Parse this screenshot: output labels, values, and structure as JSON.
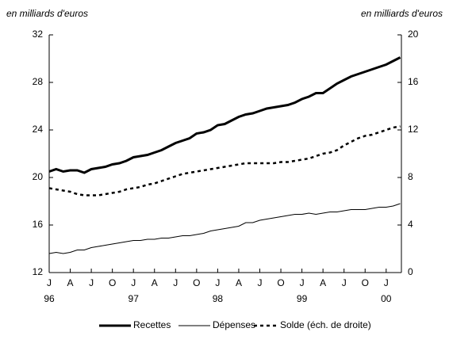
{
  "chart_data": {
    "type": "line",
    "y_label": "en milliards d'euros",
    "y2_label": "en milliards d'euros",
    "categories": [
      "J",
      null,
      null,
      "A",
      null,
      null,
      "J",
      null,
      null,
      "O",
      null,
      null,
      "J",
      null,
      null,
      "A",
      null,
      null,
      "J",
      null,
      null,
      "O",
      null,
      null,
      "J",
      null,
      null,
      "A",
      null,
      null,
      "J",
      null,
      null,
      "O",
      null,
      null,
      "J",
      null,
      null,
      "A",
      null,
      null,
      "J",
      null,
      null,
      "O",
      null,
      null,
      "J",
      null,
      null
    ],
    "year_labels": [
      "96",
      null,
      null,
      null,
      null,
      null,
      null,
      null,
      null,
      null,
      null,
      null,
      "97",
      null,
      null,
      null,
      null,
      null,
      null,
      null,
      null,
      null,
      null,
      null,
      "98",
      null,
      null,
      null,
      null,
      null,
      null,
      null,
      null,
      null,
      null,
      null,
      "99",
      null,
      null,
      null,
      null,
      null,
      null,
      null,
      null,
      null,
      null,
      null,
      "00",
      null,
      null
    ],
    "series": [
      {
        "name": "Recettes",
        "color": "#000000",
        "style": "bold",
        "values": [
          20.5,
          20.7,
          20.5,
          20.6,
          20.6,
          20.4,
          20.7,
          20.8,
          20.9,
          21.1,
          21.2,
          21.4,
          21.7,
          21.8,
          21.9,
          22.1,
          22.3,
          22.6,
          22.9,
          23.1,
          23.3,
          23.7,
          23.8,
          24.0,
          24.4,
          24.5,
          24.8,
          25.1,
          25.3,
          25.4,
          25.6,
          25.8,
          25.9,
          26.0,
          26.1,
          26.3,
          26.6,
          26.8,
          27.1,
          27.1,
          27.5,
          27.9,
          28.2,
          28.5,
          28.7,
          28.9,
          29.1,
          29.3,
          29.5,
          29.8,
          30.1
        ]
      },
      {
        "name": "Dépenses",
        "color": "#000000",
        "style": "thin",
        "values": [
          13.6,
          13.7,
          13.6,
          13.7,
          13.9,
          13.9,
          14.1,
          14.2,
          14.3,
          14.4,
          14.5,
          14.6,
          14.7,
          14.7,
          14.8,
          14.8,
          14.9,
          14.9,
          15.0,
          15.1,
          15.1,
          15.2,
          15.3,
          15.5,
          15.6,
          15.7,
          15.8,
          15.9,
          16.2,
          16.2,
          16.4,
          16.5,
          16.6,
          16.7,
          16.8,
          16.9,
          16.9,
          17.0,
          16.9,
          17.0,
          17.1,
          17.1,
          17.2,
          17.3,
          17.3,
          17.3,
          17.4,
          17.5,
          17.5,
          17.6,
          17.8
        ]
      },
      {
        "name": "Solde (éch. de droite)",
        "color": "#000000",
        "style": "dotted",
        "axis": "y2",
        "values": [
          7.1,
          7.0,
          6.9,
          6.8,
          6.6,
          6.5,
          6.5,
          6.5,
          6.6,
          6.7,
          6.8,
          7.0,
          7.1,
          7.2,
          7.4,
          7.5,
          7.7,
          7.9,
          8.1,
          8.3,
          8.4,
          8.5,
          8.6,
          8.7,
          8.8,
          8.9,
          9.0,
          9.1,
          9.2,
          9.2,
          9.2,
          9.2,
          9.2,
          9.3,
          9.3,
          9.4,
          9.5,
          9.6,
          9.8,
          10.0,
          10.1,
          10.3,
          10.7,
          11.0,
          11.3,
          11.5,
          11.6,
          11.8,
          12.0,
          12.2,
          12.3
        ]
      }
    ],
    "ylim": [
      12,
      32
    ],
    "yticks": [
      12,
      16,
      20,
      24,
      28,
      32
    ],
    "y2lim": [
      0,
      20
    ],
    "y2ticks": [
      0,
      4,
      8,
      12,
      16,
      20
    ],
    "legend": "bottom"
  }
}
